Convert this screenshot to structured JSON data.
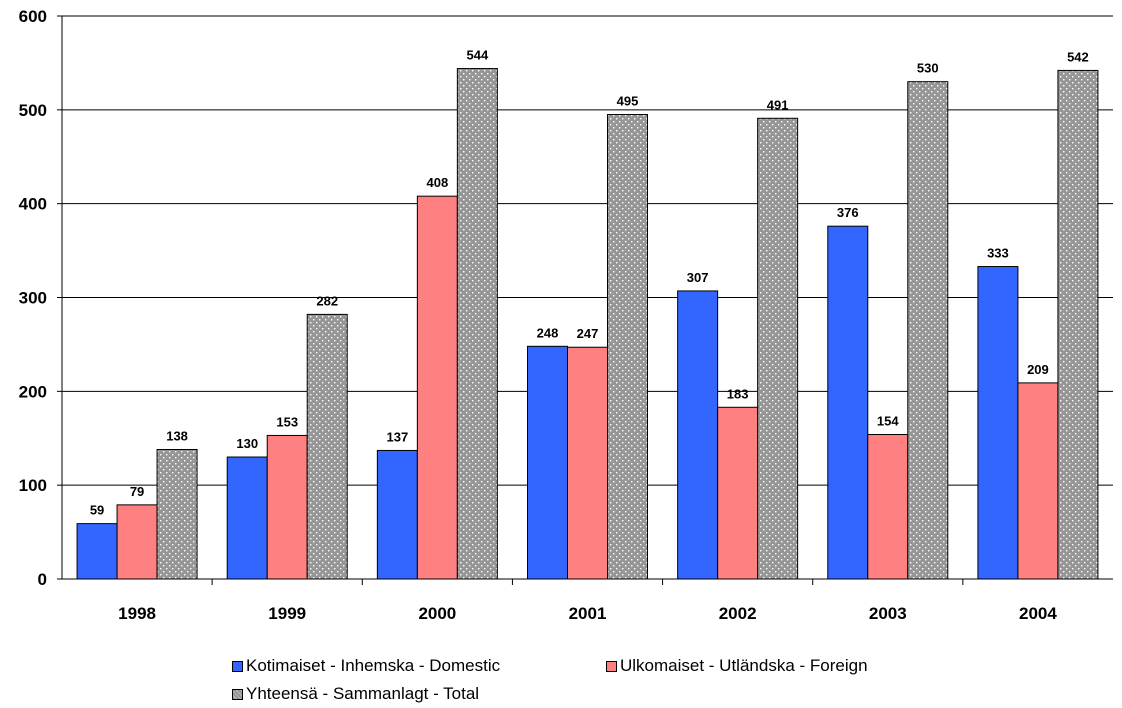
{
  "chart_data": {
    "type": "bar",
    "categories": [
      "1998",
      "1999",
      "2000",
      "2001",
      "2002",
      "2003",
      "2004"
    ],
    "series": [
      {
        "name": "Kotimaiset - Inhemska - Domestic",
        "values": [
          59,
          130,
          137,
          248,
          307,
          376,
          333
        ],
        "color": "#3366FF"
      },
      {
        "name": "Ulkomaiset - Utländska - Foreign",
        "values": [
          79,
          153,
          408,
          247,
          183,
          154,
          209
        ],
        "color": "#FF8080"
      },
      {
        "name": "Yhteensä - Sammanlagt - Total",
        "values": [
          138,
          282,
          544,
          495,
          491,
          530,
          542
        ],
        "color": "#969696"
      }
    ],
    "yticks": [
      "0",
      "100",
      "200",
      "300",
      "400",
      "500",
      "600"
    ],
    "ylim": [
      0,
      600
    ],
    "grid": true,
    "data_labels": true,
    "legend_position": "bottom"
  }
}
